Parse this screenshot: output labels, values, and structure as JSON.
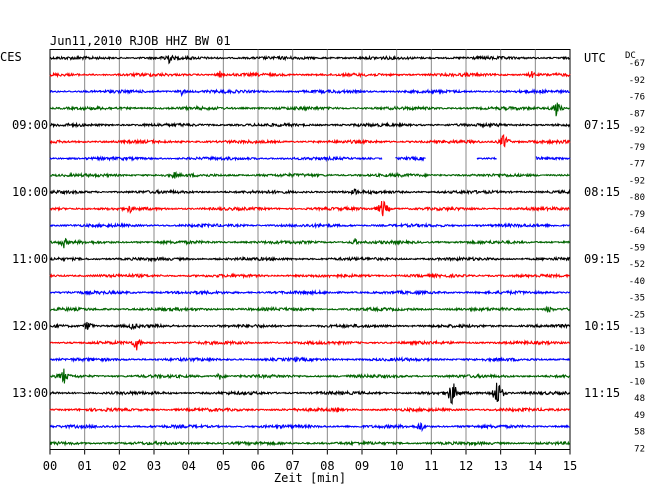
{
  "chart_data": {
    "type": "line",
    "title": "Jun11,2010  RJOB HHZ BW 01",
    "left_tz_label": "CES",
    "right_tz_label": "UTC",
    "dc_label": "DC",
    "xlabel": "Zeit [min]",
    "x_ticks": [
      "00",
      "01",
      "02",
      "03",
      "04",
      "05",
      "06",
      "07",
      "08",
      "09",
      "10",
      "11",
      "12",
      "13",
      "14",
      "15"
    ],
    "xlim": [
      0,
      15
    ],
    "trace_colors": [
      "#000000",
      "#ff0000",
      "#0000ff",
      "#006400"
    ],
    "left_time_labels": [
      {
        "trace": 4,
        "text": "09:00"
      },
      {
        "trace": 8,
        "text": "10:00"
      },
      {
        "trace": 12,
        "text": "11:00"
      },
      {
        "trace": 16,
        "text": "12:00"
      },
      {
        "trace": 20,
        "text": "13:00"
      }
    ],
    "right_time_labels": [
      {
        "trace": 0,
        "text": "UTC"
      },
      {
        "trace": 4,
        "text": "07:15"
      },
      {
        "trace": 8,
        "text": "08:15"
      },
      {
        "trace": 12,
        "text": "09:15"
      },
      {
        "trace": 16,
        "text": "10:15"
      },
      {
        "trace": 20,
        "text": "11:15"
      }
    ],
    "dc_offsets": [
      "-67",
      "-92",
      "-76",
      "-87",
      "-92",
      "-79",
      "-77",
      "-92",
      "-80",
      "-79",
      "-64",
      "-59",
      "-52",
      "-40",
      "-35",
      "-25",
      "-13",
      "-10",
      "15",
      "-10",
      "48",
      "49",
      "58",
      "72"
    ],
    "events": [
      {
        "trace": 0,
        "minute": 3.4,
        "amplitude": 8
      },
      {
        "trace": 1,
        "minute": 4.9,
        "amplitude": 4
      },
      {
        "trace": 1,
        "minute": 13.9,
        "amplitude": 4
      },
      {
        "trace": 2,
        "minute": 3.8,
        "amplitude": 4
      },
      {
        "trace": 2,
        "minute": 5.0,
        "amplitude": 3
      },
      {
        "trace": 3,
        "minute": 14.6,
        "amplitude": 9
      },
      {
        "trace": 5,
        "minute": 13.1,
        "amplitude": 9
      },
      {
        "trace": 7,
        "minute": 3.6,
        "amplitude": 4
      },
      {
        "trace": 8,
        "minute": 8.8,
        "amplitude": 4
      },
      {
        "trace": 9,
        "minute": 2.3,
        "amplitude": 5
      },
      {
        "trace": 9,
        "minute": 9.6,
        "amplitude": 11
      },
      {
        "trace": 11,
        "minute": 0.4,
        "amplitude": 6
      },
      {
        "trace": 11,
        "minute": 8.8,
        "amplitude": 4
      },
      {
        "trace": 15,
        "minute": 14.4,
        "amplitude": 4
      },
      {
        "trace": 16,
        "minute": 1.1,
        "amplitude": 6
      },
      {
        "trace": 16,
        "minute": 2.4,
        "amplitude": 5
      },
      {
        "trace": 17,
        "minute": 2.5,
        "amplitude": 8
      },
      {
        "trace": 18,
        "minute": 7.1,
        "amplitude": 3
      },
      {
        "trace": 19,
        "minute": 0.4,
        "amplitude": 9
      },
      {
        "trace": 19,
        "minute": 4.9,
        "amplitude": 4
      },
      {
        "trace": 20,
        "minute": 11.6,
        "amplitude": 15
      },
      {
        "trace": 20,
        "minute": 12.9,
        "amplitude": 16
      },
      {
        "trace": 21,
        "minute": 8.3,
        "amplitude": 3
      },
      {
        "trace": 22,
        "minute": 10.7,
        "amplitude": 6
      }
    ],
    "gaps": [
      {
        "trace": 6,
        "from_min": 9.6,
        "to_min": 9.95
      },
      {
        "trace": 6,
        "from_min": 10.85,
        "to_min": 12.3
      },
      {
        "trace": 6,
        "from_min": 12.9,
        "to_min": 14.0
      }
    ],
    "grid": true,
    "trace_count": 24
  }
}
